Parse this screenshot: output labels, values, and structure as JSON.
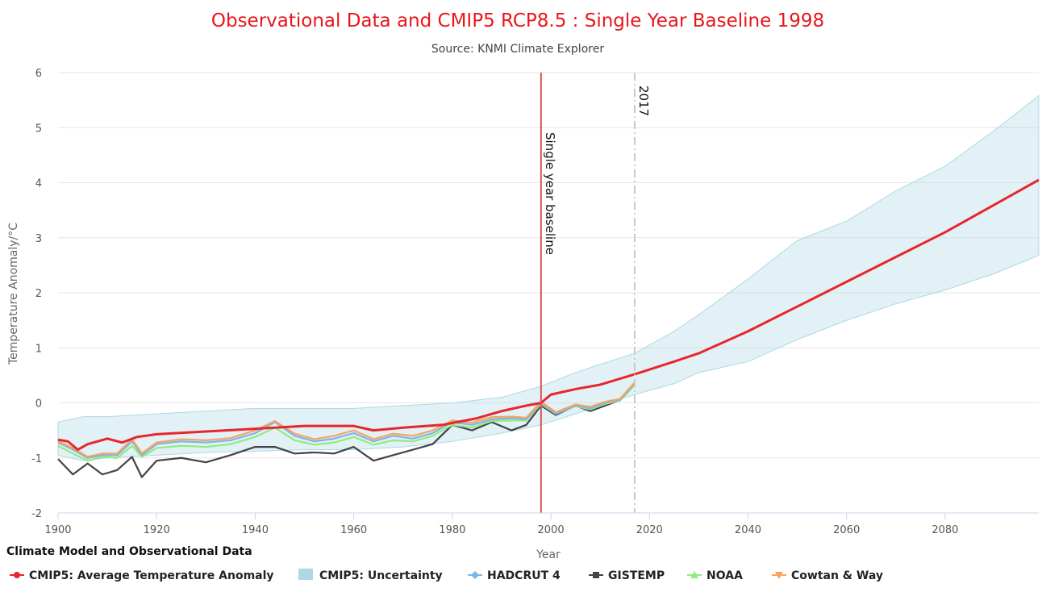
{
  "chart_data": {
    "type": "line",
    "title": "Observational Data and CMIP5 RCP8.5 : Single Year Baseline 1998",
    "subtitle": "Source: KNMI Climate Explorer",
    "xlabel": "Year",
    "ylabel": "Temperature Anomaly/°C",
    "xlim": [
      1900,
      2099
    ],
    "ylim": [
      -2,
      6
    ],
    "x_ticks": [
      1900,
      1920,
      1940,
      1960,
      1980,
      2000,
      2020,
      2040,
      2060,
      2080
    ],
    "y_ticks": [
      -2,
      -1,
      0,
      1,
      2,
      3,
      4,
      5,
      6
    ],
    "grid": "horizontal",
    "legend_title": "Climate Model and Observational Data",
    "legend_position": "bottom-left",
    "plot_lines": [
      {
        "x": 1998,
        "label": "Single year baseline",
        "color": "#d9534f",
        "style": "solid"
      },
      {
        "x": 2017,
        "label": "2017",
        "color": "#c8c8c8",
        "style": "dashdot"
      }
    ],
    "colors": {
      "cmip5_mean": "#e8262b",
      "cmip5_uncertainty": "#add8e6",
      "hadcrut": "#7cb5ec",
      "gistemp": "#434348",
      "noaa": "#90ed7d",
      "cowtan_way": "#f7a35c"
    },
    "series": [
      {
        "name": "CMIP5: Average Temperature Anomaly",
        "kind": "line",
        "x": [
          1900,
          1902,
          1904,
          1906,
          1910,
          1913,
          1916,
          1920,
          1930,
          1940,
          1950,
          1960,
          1964,
          1970,
          1978,
          1985,
          1990,
          1995,
          1998,
          2000,
          2005,
          2010,
          2017,
          2025,
          2030,
          2040,
          2050,
          2060,
          2070,
          2080,
          2090,
          2099
        ],
        "values": [
          -0.67,
          -0.7,
          -0.85,
          -0.75,
          -0.65,
          -0.72,
          -0.62,
          -0.57,
          -0.52,
          -0.47,
          -0.42,
          -0.42,
          -0.5,
          -0.45,
          -0.4,
          -0.28,
          -0.15,
          -0.05,
          0.0,
          0.15,
          0.25,
          0.33,
          0.52,
          0.75,
          0.9,
          1.3,
          1.75,
          2.2,
          2.65,
          3.1,
          3.6,
          4.05
        ]
      },
      {
        "name": "CMIP5: Uncertainty",
        "kind": "range",
        "x": [
          1900,
          1905,
          1910,
          1920,
          1930,
          1940,
          1950,
          1960,
          1970,
          1980,
          1990,
          1998,
          2005,
          2010,
          2017,
          2025,
          2030,
          2040,
          2050,
          2060,
          2070,
          2080,
          2090,
          2099
        ],
        "low": [
          -0.95,
          -1.05,
          -1.0,
          -0.95,
          -0.9,
          -0.88,
          -0.85,
          -0.85,
          -0.8,
          -0.7,
          -0.55,
          -0.4,
          -0.2,
          -0.05,
          0.15,
          0.35,
          0.55,
          0.75,
          1.15,
          1.5,
          1.8,
          2.05,
          2.35,
          2.68
        ],
        "high": [
          -0.35,
          -0.25,
          -0.25,
          -0.2,
          -0.15,
          -0.1,
          -0.1,
          -0.1,
          -0.05,
          0.0,
          0.1,
          0.3,
          0.55,
          0.7,
          0.9,
          1.3,
          1.6,
          2.25,
          2.95,
          3.3,
          3.85,
          4.3,
          4.95,
          5.58
        ]
      },
      {
        "name": "HADCRUT 4",
        "kind": "line",
        "x": [
          1900,
          1903,
          1906,
          1909,
          1912,
          1915,
          1917,
          1920,
          1925,
          1930,
          1935,
          1940,
          1944,
          1948,
          1952,
          1956,
          1960,
          1964,
          1968,
          1972,
          1976,
          1980,
          1984,
          1988,
          1992,
          1995,
          1998,
          2001,
          2005,
          2008,
          2011,
          2014,
          2017
        ],
        "values": [
          -0.72,
          -0.85,
          -1.0,
          -0.95,
          -0.95,
          -0.7,
          -0.95,
          -0.75,
          -0.7,
          -0.72,
          -0.68,
          -0.55,
          -0.35,
          -0.6,
          -0.7,
          -0.65,
          -0.55,
          -0.7,
          -0.6,
          -0.65,
          -0.55,
          -0.35,
          -0.4,
          -0.3,
          -0.28,
          -0.3,
          0.0,
          -0.2,
          -0.05,
          -0.1,
          0.0,
          0.05,
          0.35
        ]
      },
      {
        "name": "GISTEMP",
        "kind": "line",
        "x": [
          1900,
          1903,
          1906,
          1909,
          1912,
          1915,
          1917,
          1920,
          1925,
          1930,
          1935,
          1940,
          1944,
          1948,
          1952,
          1956,
          1960,
          1964,
          1968,
          1972,
          1976,
          1980,
          1984,
          1988,
          1992,
          1995,
          1998,
          2001,
          2005,
          2008,
          2011,
          2014,
          2017
        ],
        "values": [
          -1.02,
          -1.3,
          -1.1,
          -1.3,
          -1.22,
          -0.98,
          -1.35,
          -1.05,
          -1.0,
          -1.08,
          -0.95,
          -0.8,
          -0.8,
          -0.92,
          -0.9,
          -0.92,
          -0.8,
          -1.05,
          -0.95,
          -0.85,
          -0.75,
          -0.4,
          -0.5,
          -0.35,
          -0.5,
          -0.4,
          -0.05,
          -0.22,
          -0.05,
          -0.15,
          -0.05,
          0.05,
          0.35
        ]
      },
      {
        "name": "NOAA",
        "kind": "line",
        "x": [
          1900,
          1903,
          1906,
          1909,
          1912,
          1915,
          1917,
          1920,
          1925,
          1930,
          1935,
          1940,
          1944,
          1948,
          1952,
          1956,
          1960,
          1964,
          1968,
          1972,
          1976,
          1980,
          1984,
          1988,
          1992,
          1995,
          1998,
          2001,
          2005,
          2008,
          2011,
          2014,
          2017
        ],
        "values": [
          -0.78,
          -0.92,
          -1.05,
          -0.98,
          -1.0,
          -0.78,
          -0.98,
          -0.82,
          -0.78,
          -0.8,
          -0.75,
          -0.62,
          -0.45,
          -0.68,
          -0.76,
          -0.72,
          -0.62,
          -0.76,
          -0.68,
          -0.7,
          -0.6,
          -0.4,
          -0.45,
          -0.33,
          -0.32,
          -0.32,
          -0.02,
          -0.2,
          -0.06,
          -0.12,
          -0.02,
          0.04,
          0.32
        ]
      },
      {
        "name": "Cowtan & Way",
        "kind": "line",
        "x": [
          1900,
          1903,
          1906,
          1909,
          1912,
          1915,
          1917,
          1920,
          1925,
          1930,
          1935,
          1940,
          1944,
          1948,
          1952,
          1956,
          1960,
          1964,
          1968,
          1972,
          1976,
          1980,
          1984,
          1988,
          1992,
          1995,
          1998,
          2001,
          2005,
          2008,
          2011,
          2014,
          2017
        ],
        "values": [
          -0.7,
          -0.82,
          -0.98,
          -0.92,
          -0.92,
          -0.66,
          -0.92,
          -0.72,
          -0.66,
          -0.68,
          -0.64,
          -0.5,
          -0.33,
          -0.56,
          -0.66,
          -0.6,
          -0.5,
          -0.66,
          -0.56,
          -0.6,
          -0.5,
          -0.32,
          -0.36,
          -0.26,
          -0.25,
          -0.27,
          0.02,
          -0.17,
          -0.03,
          -0.07,
          0.02,
          0.07,
          0.37
        ]
      }
    ]
  }
}
